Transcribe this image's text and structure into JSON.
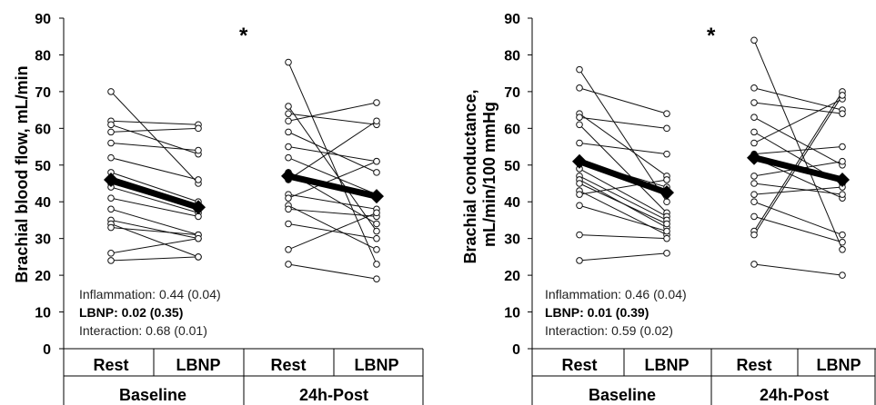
{
  "chart_data": [
    {
      "type": "line",
      "ylabel": "Brachial blood flow, mL/min",
      "ylim": [
        0,
        90
      ],
      "yticks": [
        "0",
        "10",
        "20",
        "30",
        "40",
        "50",
        "60",
        "70",
        "80",
        "90"
      ],
      "significance_mark": "*",
      "groups": [
        {
          "label": "Baseline",
          "conditions": [
            "Rest",
            "LBNP"
          ]
        },
        {
          "label": "24h-Post",
          "conditions": [
            "Rest",
            "LBNP"
          ]
        }
      ],
      "stats": [
        {
          "label": "Inflammation:",
          "value": "0.44 (0.04)",
          "bold": false
        },
        {
          "label": "LBNP:",
          "value": "0.02 (0.35)",
          "bold": true
        },
        {
          "label": "Interaction:",
          "value": "0.68 (0.01)",
          "bold": false
        }
      ],
      "individual": {
        "baseline": [
          [
            70,
            45
          ],
          [
            62,
            61
          ],
          [
            61,
            53
          ],
          [
            59,
            60
          ],
          [
            56,
            54
          ],
          [
            52,
            46
          ],
          [
            48,
            40
          ],
          [
            45,
            38
          ],
          [
            44,
            37
          ],
          [
            41,
            36
          ],
          [
            38,
            31
          ],
          [
            35,
            30
          ],
          [
            34,
            25
          ],
          [
            33,
            31
          ],
          [
            26,
            30
          ],
          [
            24,
            25
          ]
        ],
        "post": [
          [
            78,
            23
          ],
          [
            66,
            32
          ],
          [
            64,
            61
          ],
          [
            62,
            67
          ],
          [
            59,
            48
          ],
          [
            55,
            51
          ],
          [
            52,
            42
          ],
          [
            48,
            34
          ],
          [
            46,
            62
          ],
          [
            42,
            38
          ],
          [
            41,
            51
          ],
          [
            39,
            27
          ],
          [
            38,
            36
          ],
          [
            34,
            30
          ],
          [
            27,
            37
          ],
          [
            23,
            19
          ]
        ]
      },
      "mean": {
        "baseline": [
          46,
          38.5
        ],
        "post": [
          47,
          41.5
        ]
      }
    },
    {
      "type": "line",
      "ylabel_line1": "Brachial conductance,",
      "ylabel_line2": "mL/min/100 mmHg",
      "ylim": [
        0,
        90
      ],
      "yticks": [
        "0",
        "10",
        "20",
        "30",
        "40",
        "50",
        "60",
        "70",
        "80",
        "90"
      ],
      "significance_mark": "*",
      "groups": [
        {
          "label": "Baseline",
          "conditions": [
            "Rest",
            "LBNP"
          ]
        },
        {
          "label": "24h-Post",
          "conditions": [
            "Rest",
            "LBNP"
          ]
        }
      ],
      "stats": [
        {
          "label": "Inflammation:",
          "value": "0.46 (0.04)",
          "bold": false
        },
        {
          "label": "LBNP:",
          "value": "0.01 (0.39)",
          "bold": true
        },
        {
          "label": "Interaction:",
          "value": "0.59 (0.02)",
          "bold": false
        }
      ],
      "individual": {
        "baseline": [
          [
            76,
            40
          ],
          [
            71,
            64
          ],
          [
            64,
            47
          ],
          [
            63,
            60
          ],
          [
            61,
            37
          ],
          [
            56,
            53
          ],
          [
            51,
            44
          ],
          [
            49,
            36
          ],
          [
            47,
            35
          ],
          [
            46,
            33
          ],
          [
            45,
            34
          ],
          [
            43,
            31
          ],
          [
            39,
            32
          ],
          [
            31,
            30
          ],
          [
            24,
            26
          ],
          [
            42,
            46
          ]
        ],
        "post": [
          [
            84,
            27
          ],
          [
            71,
            65
          ],
          [
            67,
            64
          ],
          [
            63,
            50
          ],
          [
            59,
            45
          ],
          [
            56,
            68
          ],
          [
            53,
            55
          ],
          [
            52,
            41
          ],
          [
            47,
            51
          ],
          [
            45,
            42
          ],
          [
            42,
            44
          ],
          [
            40,
            31
          ],
          [
            36,
            29
          ],
          [
            32,
            70
          ],
          [
            31,
            69
          ],
          [
            23,
            20
          ]
        ]
      },
      "mean": {
        "baseline": [
          51,
          42.5
        ],
        "post": [
          52,
          46
        ]
      }
    }
  ]
}
